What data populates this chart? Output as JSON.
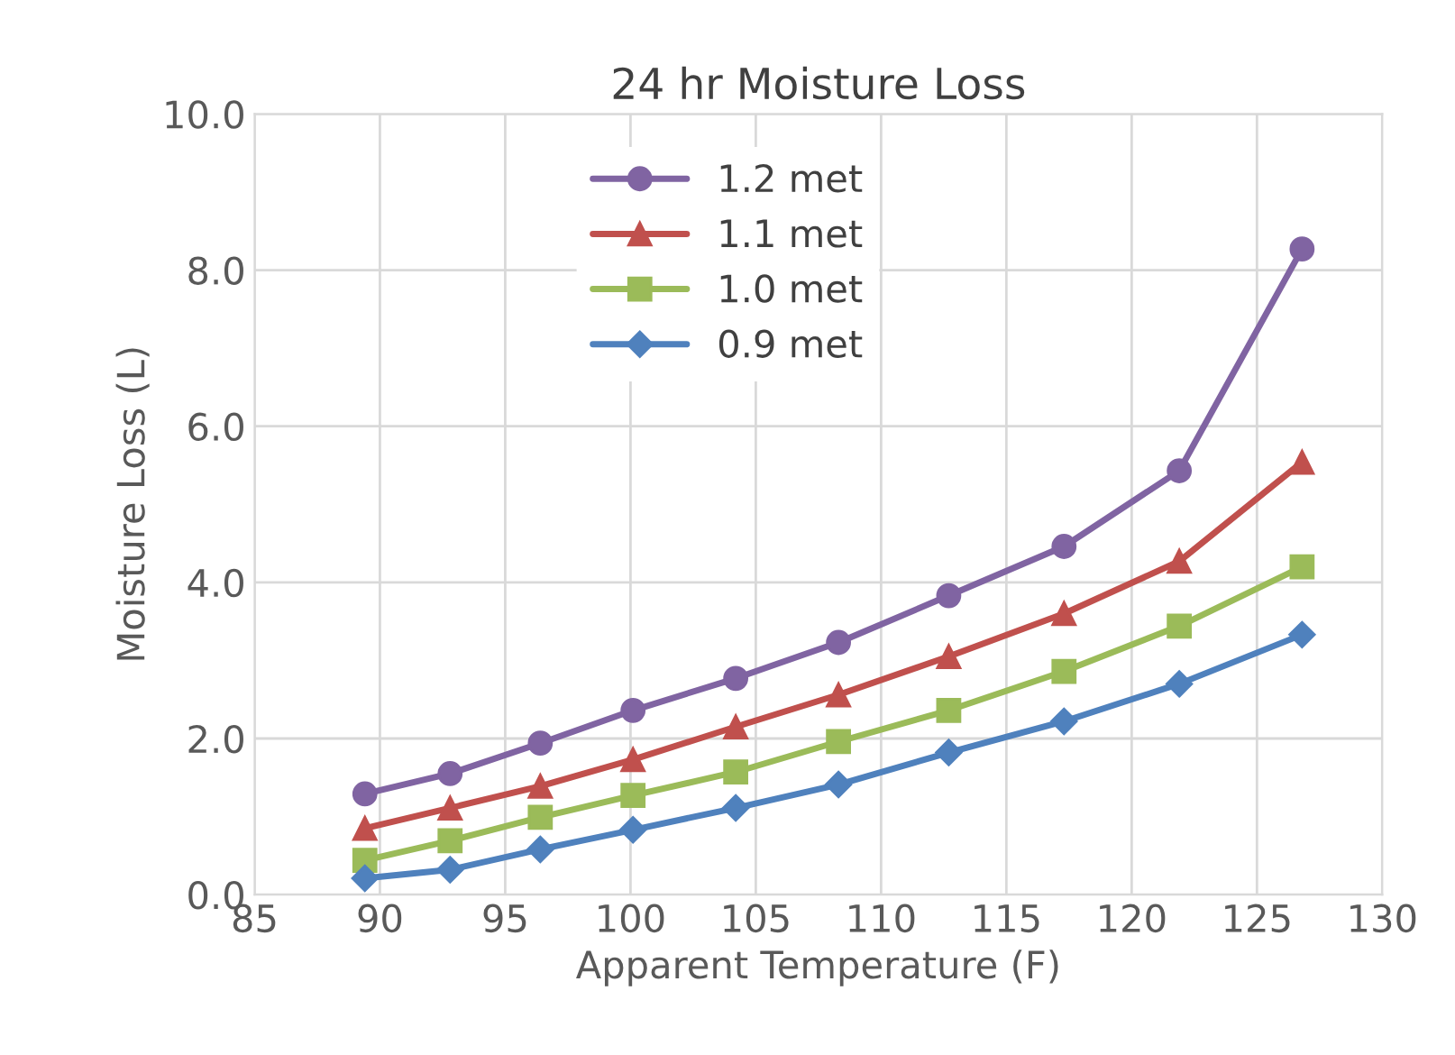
{
  "chart_data": {
    "type": "line",
    "title": "24 hr Moisture Loss",
    "xlabel": "Apparent Temperature (F)",
    "ylabel": "Moisture Loss (L)",
    "x": [
      89.4,
      92.8,
      96.4,
      100.1,
      104.2,
      108.3,
      112.7,
      117.3,
      121.9,
      126.8
    ],
    "series": [
      {
        "name": "1.2 met",
        "color": "#8064a2",
        "marker": "circle",
        "values": [
          1.29,
          1.55,
          1.94,
          2.36,
          2.77,
          3.23,
          3.83,
          4.46,
          5.43,
          8.27
        ]
      },
      {
        "name": "1.1 met",
        "color": "#c0504d",
        "marker": "triangle",
        "values": [
          0.85,
          1.11,
          1.39,
          1.73,
          2.15,
          2.56,
          3.05,
          3.6,
          4.27,
          5.54
        ]
      },
      {
        "name": "1.0 met",
        "color": "#9bbb59",
        "marker": "square",
        "values": [
          0.44,
          0.69,
          0.99,
          1.27,
          1.57,
          1.96,
          2.36,
          2.86,
          3.44,
          4.2
        ]
      },
      {
        "name": "0.9 met",
        "color": "#4f81bd",
        "marker": "diamond",
        "values": [
          0.21,
          0.32,
          0.58,
          0.83,
          1.11,
          1.41,
          1.82,
          2.22,
          2.7,
          3.33
        ]
      }
    ],
    "xlim": [
      85,
      130
    ],
    "xticks": [
      85,
      90,
      95,
      100,
      105,
      110,
      115,
      120,
      125,
      130
    ],
    "ylim": [
      0,
      10
    ],
    "yticks": [
      {
        "value": 0,
        "label": "0.0"
      },
      {
        "value": 2,
        "label": "2.0"
      },
      {
        "value": 4,
        "label": "4.0"
      },
      {
        "value": 6,
        "label": "6.0"
      },
      {
        "value": 8,
        "label": "8.0"
      },
      {
        "value": 10,
        "label": "10.0"
      }
    ],
    "grid": true,
    "legend": "top left",
    "line_style": "solid"
  }
}
